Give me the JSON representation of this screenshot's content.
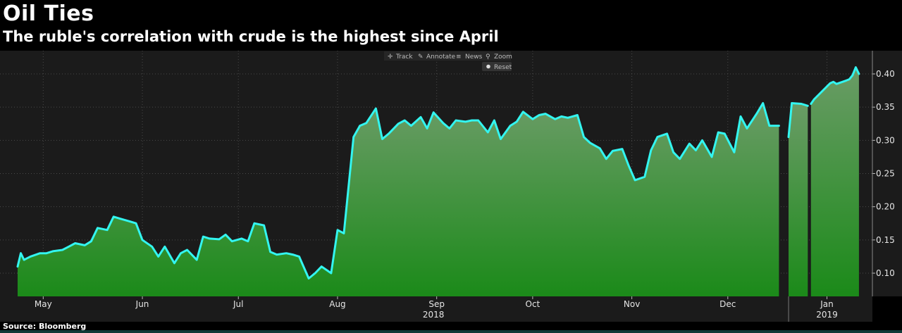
{
  "header": {
    "title": "Oil Ties",
    "subtitle": "The ruble's correlation with crude is the highest since April"
  },
  "footer": {
    "source": "Source: Bloomberg"
  },
  "toolbar": {
    "track": "Track",
    "annotate": "Annotate",
    "news": "News",
    "zoom": "Zoom",
    "reset": "Reset"
  },
  "colors": {
    "line": "#33f5f0",
    "fill_top": "#6a9c66",
    "fill_bottom": "#1b8a19",
    "background": "#1b1b1b",
    "grid": "#4a4a4a"
  },
  "chart_data": {
    "type": "area",
    "title": "Oil Ties",
    "subtitle": "The ruble's correlation with crude is the highest since April",
    "xlabel": "",
    "ylabel": "",
    "ylim": [
      0.065,
      0.435
    ],
    "yticks": [
      0.1,
      0.15,
      0.2,
      0.25,
      0.3,
      0.35,
      0.4
    ],
    "ytick_labels": [
      "0.10",
      "0.15",
      "0.20",
      "0.25",
      "0.30",
      "0.35",
      "0.40"
    ],
    "y_axis_side": "right",
    "grid": true,
    "xlim": [
      "2018-04-23",
      "2019-01-13"
    ],
    "month_ticks": [
      {
        "label": "May",
        "date": "2018-05-01"
      },
      {
        "label": "Jun",
        "date": "2018-06-01"
      },
      {
        "label": "Jul",
        "date": "2018-07-01"
      },
      {
        "label": "Aug",
        "date": "2018-08-01"
      },
      {
        "label": "Sep",
        "date": "2018-09-01"
      },
      {
        "label": "Oct",
        "date": "2018-10-01"
      },
      {
        "label": "Nov",
        "date": "2018-11-01"
      },
      {
        "label": "Dec",
        "date": "2018-12-01"
      },
      {
        "label": "Jan",
        "date": "2019-01-01"
      }
    ],
    "year_labels": [
      {
        "label": "2018",
        "date": "2018-08-31"
      },
      {
        "label": "2019",
        "date": "2019-01-01"
      }
    ],
    "year_divider_date": "2018-12-20",
    "series": [
      {
        "segments": [
          {
            "x": [
              "2018-04-23",
              "2018-04-24",
              "2018-04-25",
              "2018-04-27",
              "2018-04-30",
              "2018-05-02",
              "2018-05-04",
              "2018-05-07",
              "2018-05-09",
              "2018-05-11",
              "2018-05-14",
              "2018-05-16",
              "2018-05-18",
              "2018-05-21",
              "2018-05-23",
              "2018-05-25",
              "2018-05-28",
              "2018-05-30",
              "2018-06-01",
              "2018-06-04",
              "2018-06-06",
              "2018-06-08",
              "2018-06-11",
              "2018-06-13",
              "2018-06-15",
              "2018-06-18",
              "2018-06-20",
              "2018-06-22",
              "2018-06-25",
              "2018-06-27",
              "2018-06-29",
              "2018-07-02",
              "2018-07-04",
              "2018-07-06",
              "2018-07-09",
              "2018-07-11",
              "2018-07-13",
              "2018-07-16",
              "2018-07-18",
              "2018-07-20",
              "2018-07-23",
              "2018-07-25",
              "2018-07-27",
              "2018-07-30",
              "2018-08-01",
              "2018-08-03",
              "2018-08-06",
              "2018-08-08",
              "2018-08-10",
              "2018-08-13",
              "2018-08-15",
              "2018-08-17",
              "2018-08-20",
              "2018-08-22",
              "2018-08-24",
              "2018-08-27",
              "2018-08-29",
              "2018-08-31",
              "2018-09-03",
              "2018-09-05",
              "2018-09-07",
              "2018-09-10",
              "2018-09-12",
              "2018-09-14",
              "2018-09-17",
              "2018-09-19",
              "2018-09-21",
              "2018-09-24",
              "2018-09-26",
              "2018-09-28",
              "2018-10-01",
              "2018-10-03",
              "2018-10-05",
              "2018-10-08",
              "2018-10-10",
              "2018-10-12",
              "2018-10-15",
              "2018-10-17",
              "2018-10-19",
              "2018-10-22",
              "2018-10-24",
              "2018-10-26",
              "2018-10-29",
              "2018-10-31",
              "2018-11-02",
              "2018-11-05",
              "2018-11-07",
              "2018-11-09",
              "2018-11-12",
              "2018-11-14",
              "2018-11-16",
              "2018-11-19",
              "2018-11-21",
              "2018-11-23",
              "2018-11-26",
              "2018-11-28",
              "2018-11-30",
              "2018-12-03",
              "2018-12-05",
              "2018-12-07",
              "2018-12-10",
              "2018-12-12",
              "2018-12-14",
              "2018-12-17"
            ],
            "y": [
              0.11,
              0.13,
              0.12,
              0.125,
              0.13,
              0.13,
              0.133,
              0.135,
              0.14,
              0.145,
              0.142,
              0.148,
              0.168,
              0.165,
              0.185,
              0.182,
              0.178,
              0.175,
              0.15,
              0.14,
              0.125,
              0.14,
              0.115,
              0.13,
              0.135,
              0.12,
              0.155,
              0.152,
              0.151,
              0.158,
              0.148,
              0.152,
              0.148,
              0.175,
              0.172,
              0.132,
              0.128,
              0.13,
              0.128,
              0.125,
              0.092,
              0.1,
              0.11,
              0.1,
              0.165,
              0.16,
              0.305,
              0.322,
              0.326,
              0.348,
              0.302,
              0.31,
              0.325,
              0.33,
              0.322,
              0.335,
              0.318,
              0.342,
              0.326,
              0.318,
              0.33,
              0.328,
              0.33,
              0.33,
              0.312,
              0.33,
              0.302,
              0.322,
              0.328,
              0.343,
              0.332,
              0.338,
              0.34,
              0.332,
              0.336,
              0.334,
              0.338,
              0.305,
              0.296,
              0.288,
              0.272,
              0.284,
              0.287,
              0.262,
              0.24,
              0.245,
              0.285,
              0.305,
              0.31,
              0.282,
              0.272,
              0.295,
              0.285,
              0.3,
              0.275,
              0.312,
              0.31,
              0.282,
              0.336,
              0.318,
              0.34,
              0.356,
              0.322,
              0.322
            ]
          },
          {
            "x": [
              "2018-12-20",
              "2018-12-21",
              "2018-12-24",
              "2018-12-26"
            ],
            "y": [
              0.305,
              0.356,
              0.355,
              0.352
            ]
          },
          {
            "x": [
              "2018-12-27",
              "2018-12-28",
              "2019-01-02",
              "2019-01-03",
              "2019-01-04",
              "2019-01-07",
              "2019-01-08",
              "2019-01-09",
              "2019-01-10",
              "2019-01-11"
            ],
            "y": [
              0.355,
              0.362,
              0.386,
              0.388,
              0.385,
              0.39,
              0.392,
              0.398,
              0.41,
              0.4
            ]
          }
        ]
      }
    ]
  }
}
